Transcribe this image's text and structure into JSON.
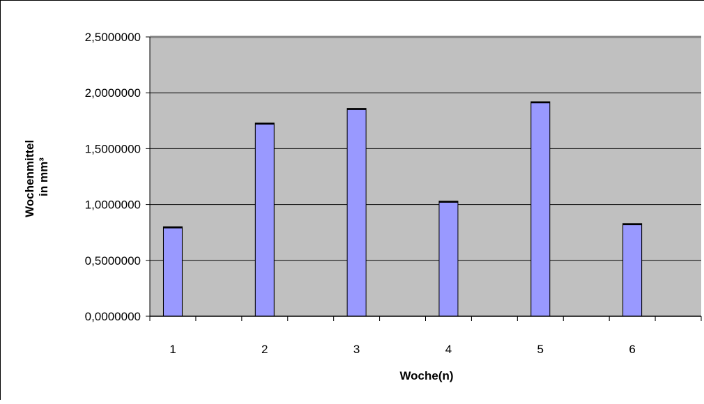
{
  "chart_data": {
    "type": "bar",
    "categories": [
      "1",
      "2",
      "3",
      "4",
      "5",
      "6"
    ],
    "values": [
      0.8,
      1.73,
      1.86,
      1.03,
      1.92,
      0.83
    ],
    "xlabel": "Woche(n)",
    "ylabel_line1": "Wochenmittel",
    "ylabel_line2": "in mm³",
    "ylim": [
      0,
      2.5
    ],
    "yticks": [
      "0,0000000",
      "0,5000000",
      "1,0000000",
      "1,5000000",
      "2,0000000",
      "2,5000000"
    ],
    "grid": true,
    "legend": "none",
    "colors": {
      "bar_fill": "#9999ff",
      "plot_background": "#c0c0c0",
      "gridline": "#000000"
    }
  }
}
